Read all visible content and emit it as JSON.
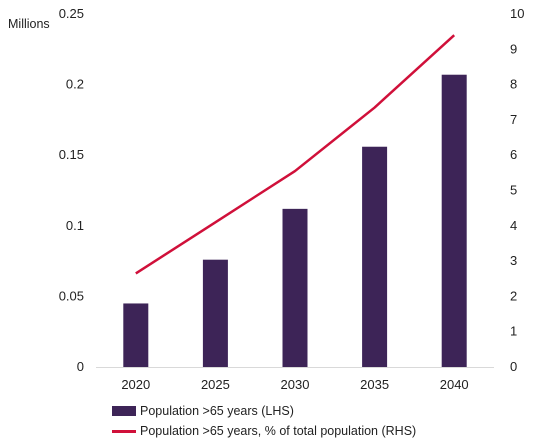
{
  "chart_data": {
    "type": "bar",
    "categories": [
      "2020",
      "2025",
      "2030",
      "2035",
      "2040"
    ],
    "series": [
      {
        "name": "Population >65 years (LHS)",
        "type": "bar",
        "axis": "left",
        "values": [
          0.045,
          0.076,
          0.112,
          0.156,
          0.207
        ]
      },
      {
        "name": "Population >65 years, % of total population (RHS)",
        "type": "line",
        "axis": "right",
        "values": [
          2.65,
          4.1,
          5.55,
          7.35,
          9.4
        ]
      }
    ],
    "left_axis": {
      "unit_label": "Millions",
      "ylim": [
        0,
        0.25
      ],
      "ticks": [
        "0",
        "0.05",
        "0.1",
        "0.15",
        "0.2",
        "0.25"
      ]
    },
    "right_axis": {
      "ylim": [
        0,
        10
      ],
      "ticks": [
        "0",
        "1",
        "2",
        "3",
        "4",
        "5",
        "6",
        "7",
        "8",
        "9",
        "10"
      ]
    },
    "grid": false,
    "legend_position": "bottom-center",
    "colors": {
      "bar": "#3d2457",
      "line": "#d0103a",
      "axis": "#d9d9d9",
      "text": "#222222"
    }
  }
}
